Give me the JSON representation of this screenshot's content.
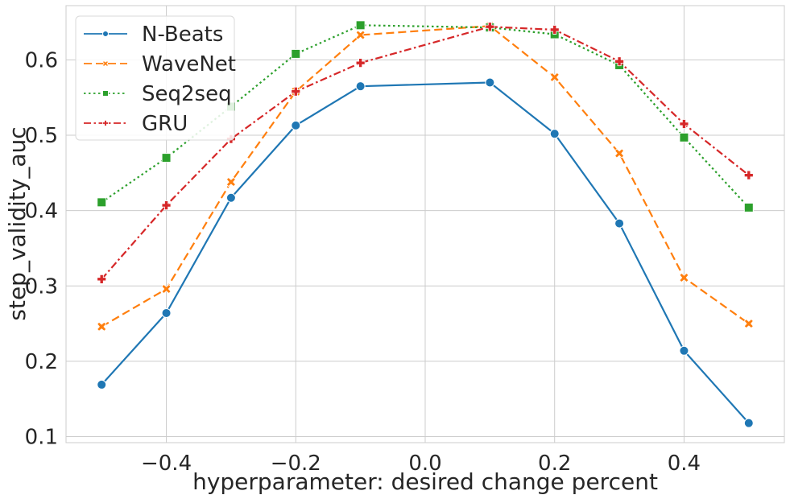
{
  "chart_data": {
    "type": "line",
    "title": "",
    "xlabel": "hyperparameter: desired change percent",
    "ylabel": "step_validity_auc",
    "x": [
      -0.5,
      -0.4,
      -0.3,
      -0.2,
      -0.1,
      0.1,
      0.2,
      0.3,
      0.4,
      0.5
    ],
    "xlim": [
      -0.555,
      0.555
    ],
    "ylim": [
      0.092,
      0.672
    ],
    "xticks": [
      -0.4,
      -0.2,
      0.0,
      0.2,
      0.4
    ],
    "xtick_labels": [
      "−0.4",
      "−0.2",
      "0.0",
      "0.2",
      "0.4"
    ],
    "yticks": [
      0.1,
      0.2,
      0.3,
      0.4,
      0.5,
      0.6
    ],
    "ytick_labels": [
      "0.1",
      "0.2",
      "0.3",
      "0.4",
      "0.5",
      "0.6"
    ],
    "grid": true,
    "legend_position": "top-left",
    "series": [
      {
        "name": "N-Beats",
        "color": "#1f77b4",
        "dash": "solid",
        "marker": "circle",
        "values": [
          0.169,
          0.264,
          0.417,
          0.513,
          0.565,
          0.57,
          0.502,
          0.383,
          0.214,
          0.118
        ]
      },
      {
        "name": "WaveNet",
        "color": "#ff7f0e",
        "dash": "dashed",
        "marker": "x",
        "values": [
          0.246,
          0.296,
          0.438,
          0.558,
          0.633,
          0.645,
          0.577,
          0.476,
          0.311,
          0.25
        ]
      },
      {
        "name": "Seq2seq",
        "color": "#2ca02c",
        "dash": "dotted",
        "marker": "square",
        "values": [
          0.411,
          0.47,
          0.538,
          0.608,
          0.646,
          0.643,
          0.634,
          0.593,
          0.497,
          0.404
        ]
      },
      {
        "name": "GRU",
        "color": "#d62728",
        "dash": "dashdot",
        "marker": "plus",
        "values": [
          0.309,
          0.407,
          0.495,
          0.558,
          0.596,
          0.644,
          0.64,
          0.598,
          0.515,
          0.447
        ]
      }
    ]
  }
}
